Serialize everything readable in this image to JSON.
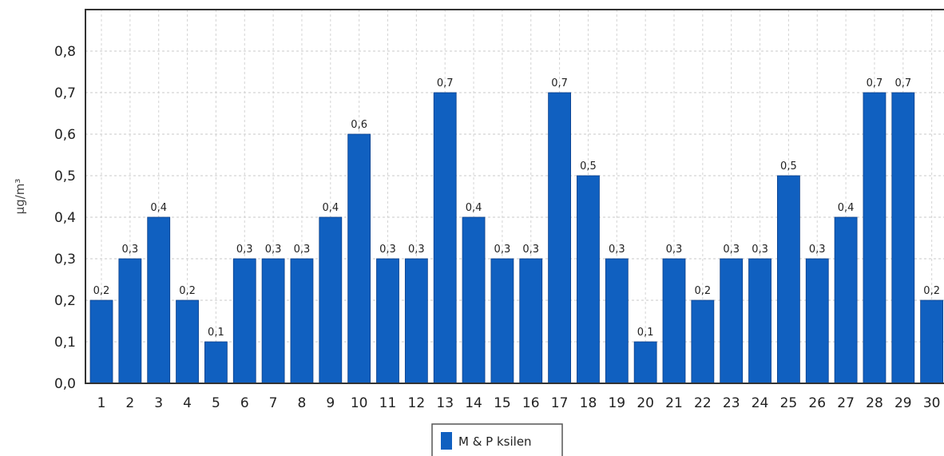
{
  "chart_data": {
    "type": "bar",
    "categories": [
      "1",
      "2",
      "3",
      "4",
      "5",
      "6",
      "7",
      "8",
      "9",
      "10",
      "11",
      "12",
      "13",
      "14",
      "15",
      "16",
      "17",
      "18",
      "19",
      "20",
      "21",
      "22",
      "23",
      "24",
      "25",
      "26",
      "27",
      "28",
      "29",
      "30"
    ],
    "series": [
      {
        "name": "M & P ksilen",
        "color": "#1060c0",
        "values": [
          0.2,
          0.3,
          0.4,
          0.2,
          0.1,
          0.3,
          0.3,
          0.3,
          0.4,
          0.6,
          0.3,
          0.3,
          0.7,
          0.4,
          0.3,
          0.3,
          0.7,
          0.5,
          0.3,
          0.1,
          0.3,
          0.2,
          0.3,
          0.3,
          0.5,
          0.3,
          0.4,
          0.7,
          0.7,
          0.2
        ]
      }
    ],
    "data_labels": [
      "0,2",
      "0,3",
      "0,4",
      "0,2",
      "0,1",
      "0,3",
      "0,3",
      "0,3",
      "0,4",
      "0,6",
      "0,3",
      "0,3",
      "0,7",
      "0,4",
      "0,3",
      "0,3",
      "0,7",
      "0,5",
      "0,3",
      "0,1",
      "0,3",
      "0,2",
      "0,3",
      "0,3",
      "0,5",
      "0,3",
      "0,4",
      "0,7",
      "0,7",
      "0,2"
    ],
    "ylabel": "µg/m³",
    "ylim": [
      0,
      0.9
    ],
    "yticks": [
      0,
      0.1,
      0.2,
      0.3,
      0.4,
      0.5,
      0.6,
      0.7,
      0.8
    ],
    "ytick_labels": [
      "0,0",
      "0,1",
      "0,2",
      "0,3",
      "0,4",
      "0,5",
      "0,6",
      "0,7",
      "0,8"
    ],
    "grid": true,
    "legend_position": "bottom-center"
  }
}
